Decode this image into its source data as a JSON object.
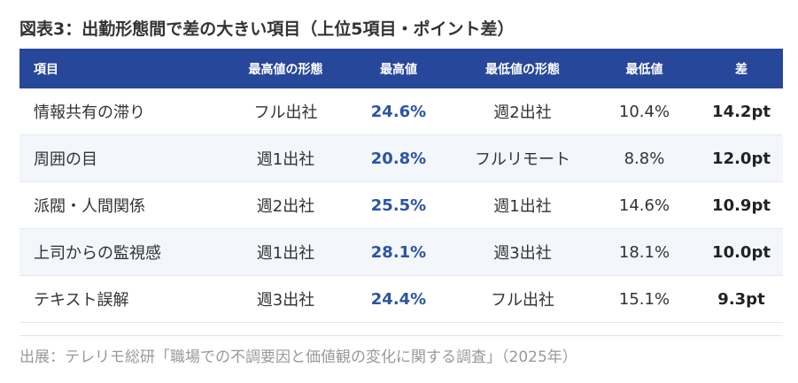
{
  "header": {
    "title": "図表3：出勤形態間で差の大きい項目（上位5項目・ポイント差）"
  },
  "table": {
    "columns": [
      "項目",
      "最高値の形態",
      "最高値",
      "最低値の形態",
      "最低値",
      "差"
    ],
    "rows": [
      [
        "情報共有の滞り",
        "フル出社",
        "24.6%",
        "週2出社",
        "10.4%",
        "14.2pt"
      ],
      [
        "周囲の目",
        "週1出社",
        "20.8%",
        "フルリモート",
        "8.8%",
        "12.0pt"
      ],
      [
        "派閥・人間関係",
        "週2出社",
        "25.5%",
        "週1出社",
        "14.6%",
        "10.9pt"
      ],
      [
        "上司からの監視感",
        "週1出社",
        "28.1%",
        "週3出社",
        "18.1%",
        "10.0pt"
      ],
      [
        "テキスト誤解",
        "週3出社",
        "24.4%",
        "フル出社",
        "15.1%",
        "9.3pt"
      ]
    ]
  },
  "footer": {
    "source": "出展：テレリモ総研「職場での不調要因と価値観の変化に関する調査」（2025年）"
  }
}
